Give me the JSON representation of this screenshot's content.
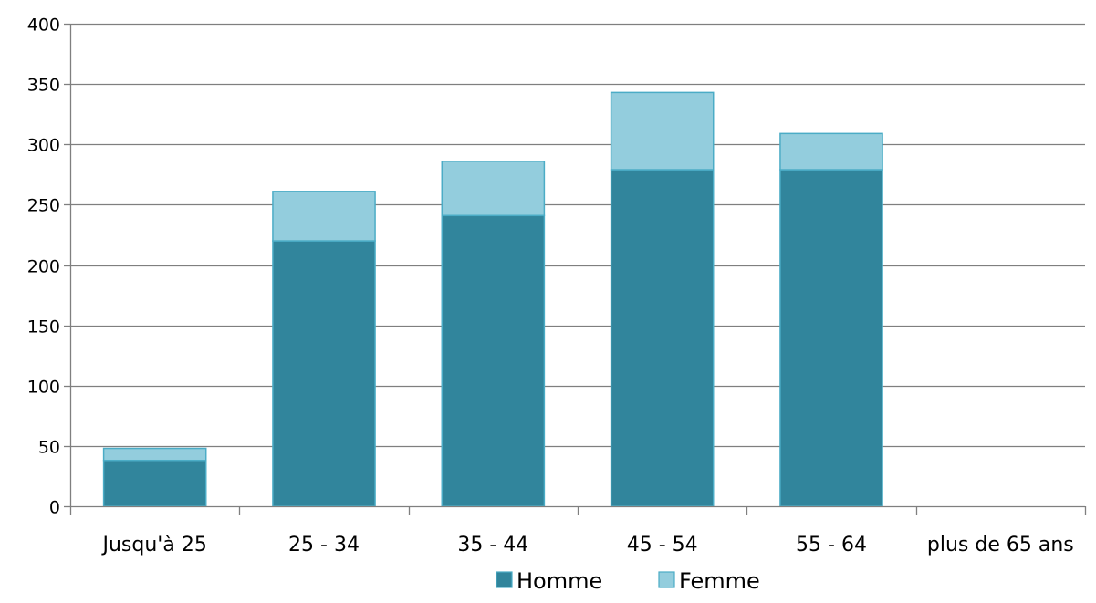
{
  "chart_data": {
    "type": "bar",
    "stacked": true,
    "title": "",
    "xlabel": "",
    "ylabel": "",
    "categories": [
      "Jusqu'à 25",
      "25 - 34",
      "35 - 44",
      "45 - 54",
      "55 - 64",
      "plus de 65 ans"
    ],
    "series": [
      {
        "name": "Homme",
        "values": [
          38,
          220,
          241,
          279,
          279,
          0
        ],
        "color": "#31859C"
      },
      {
        "name": "Femme",
        "values": [
          10,
          41,
          45,
          64,
          30,
          0
        ],
        "color": "#93CDDD"
      }
    ],
    "ylim": [
      0,
      400
    ],
    "yticks": [
      0,
      50,
      100,
      150,
      200,
      250,
      300,
      350,
      400
    ],
    "grid": true,
    "legend_position": "bottom",
    "colors": {
      "grid": "#7f7f7f",
      "bar_border": "#4BACC6"
    }
  }
}
